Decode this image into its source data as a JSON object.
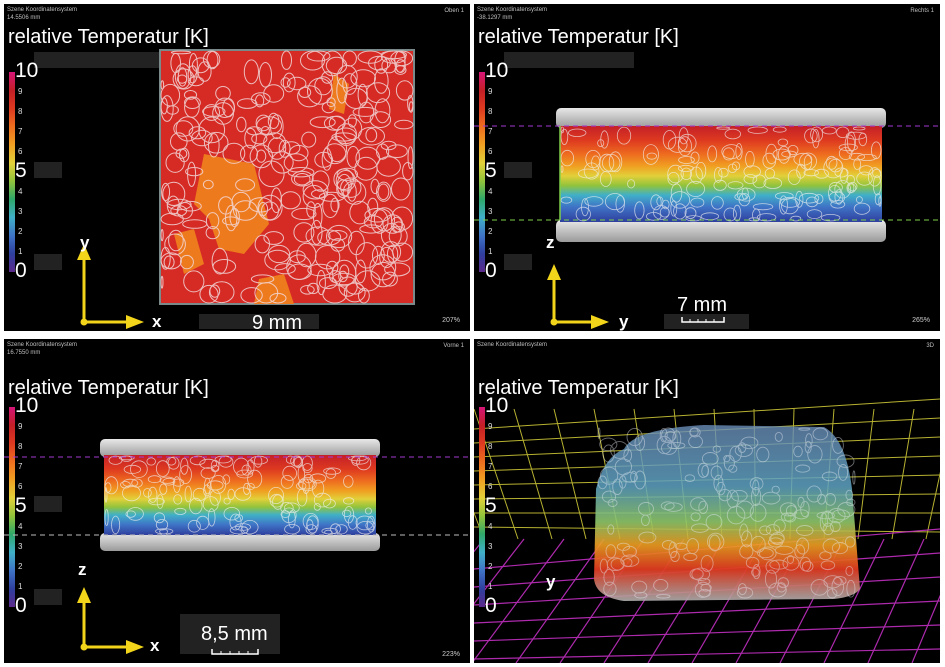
{
  "colorbar": {
    "colors": [
      "#5b2a8c",
      "#2f3f9e",
      "#3f74c6",
      "#40b0c8",
      "#2fa86a",
      "#92c33b",
      "#e2d03a",
      "#f0a022",
      "#ee6e1f",
      "#de3a20",
      "#c41f27",
      "#d61578"
    ],
    "big_labels": [
      "10",
      "5",
      "0"
    ],
    "small_labels": [
      "9",
      "8",
      "7",
      "6",
      "4",
      "3",
      "2",
      "1"
    ]
  },
  "panels": {
    "top_left": {
      "system_label": "Szene Koordinatensystem",
      "coord_value": "14.5506 mm",
      "view_name": "Oben 1",
      "heading": "relative Temperatur [K]",
      "axis_v": "y",
      "axis_h": "x",
      "scale_text": "9 mm",
      "zoom": "207%"
    },
    "top_right": {
      "coord_value": "-38.1297 mm",
      "view_name": "Rechts 1",
      "heading": "relative Temperatur [K]",
      "axis_v": "z",
      "axis_h": "y",
      "scale_text": "7 mm",
      "zoom": "265%"
    },
    "bottom_left": {
      "system_label": "Szene Koordinatensystem",
      "coord_value": "16.7550 mm",
      "view_name": "Vorne 1",
      "heading": "relative Temperatur [K]",
      "axis_v": "z",
      "axis_h": "x",
      "scale_text": "8,5 mm",
      "zoom": "223%"
    },
    "bottom_right": {
      "system_label": "Szene Koordinatensystem",
      "view_name": "3D",
      "heading": "relative Temperatur [K]",
      "axis_v": "y"
    }
  },
  "colors": {
    "panel_bg": "#000000",
    "arrow": "#f2d51a",
    "slice_purple": "#a23ad2",
    "slice_green": "#7fd04a",
    "grid_yellow": "#d8d23a",
    "grid_magenta": "#c02fc0"
  }
}
